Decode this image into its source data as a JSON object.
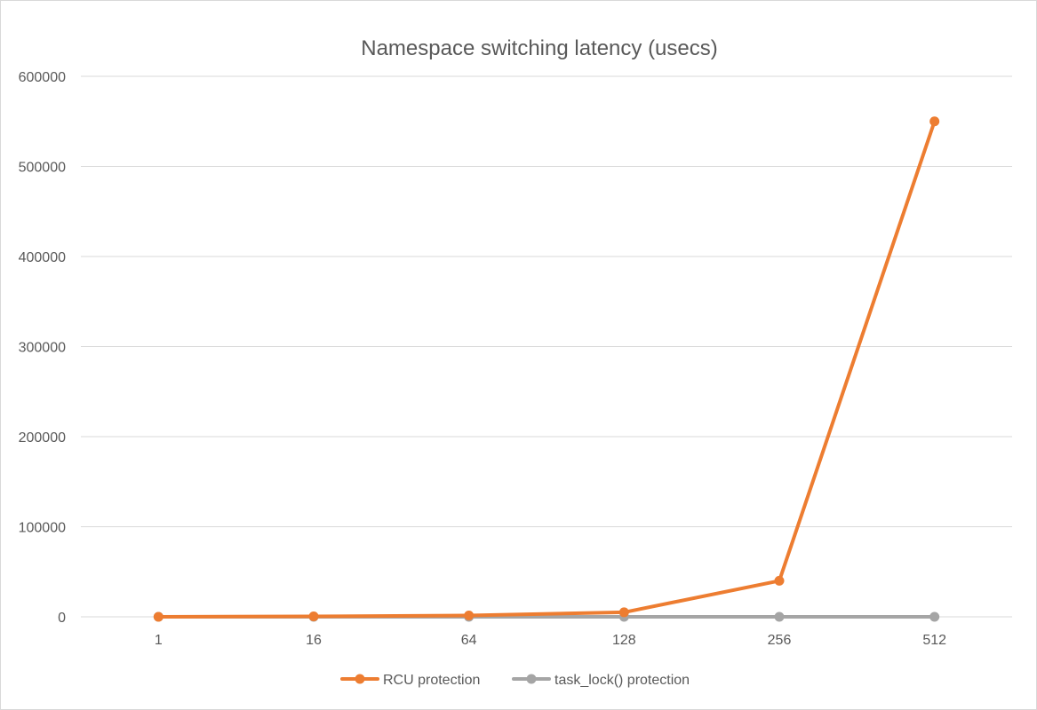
{
  "chart_data": {
    "type": "line",
    "title": "Namespace switching latency (usecs)",
    "xlabel": "",
    "ylabel": "",
    "categories": [
      "1",
      "16",
      "64",
      "128",
      "256",
      "512"
    ],
    "ylim": [
      0,
      600000
    ],
    "yticks": [
      0,
      100000,
      200000,
      300000,
      400000,
      500000,
      600000
    ],
    "grid": true,
    "legend_position": "bottom",
    "series": [
      {
        "name": "RCU protection",
        "color": "#ed7d31",
        "values": [
          0,
          500,
          1500,
          5000,
          40000,
          550000
        ]
      },
      {
        "name": "task_lock() protection",
        "color": "#a5a5a5",
        "values": [
          0,
          0,
          0,
          0,
          0,
          0
        ]
      }
    ]
  }
}
